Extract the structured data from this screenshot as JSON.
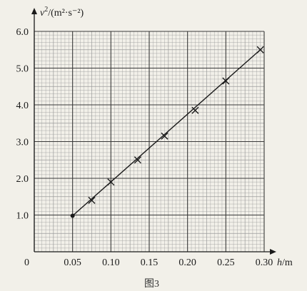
{
  "chart_data": {
    "type": "scatter",
    "caption": "图3",
    "xlabel_var": "h",
    "xlabel_unit": "/m",
    "ylabel_var": "v",
    "ylabel_unit": "/(m²·s⁻²)",
    "origin_label": "0",
    "xlim": [
      0,
      0.3
    ],
    "ylim": [
      0,
      6.0
    ],
    "x_ticks": [
      "0.05",
      "0.10",
      "0.15",
      "0.20",
      "0.25",
      "0.30"
    ],
    "y_ticks": [
      "1.0",
      "2.0",
      "3.0",
      "4.0",
      "5.0",
      "6.0"
    ],
    "grid": true,
    "fit_line": {
      "x": [
        0.05,
        0.295
      ],
      "y": [
        0.98,
        5.5
      ]
    },
    "points": [
      {
        "x": 0.05,
        "y": 0.98
      },
      {
        "x": 0.075,
        "y": 1.4
      },
      {
        "x": 0.1,
        "y": 1.9
      },
      {
        "x": 0.135,
        "y": 2.5
      },
      {
        "x": 0.17,
        "y": 3.15
      },
      {
        "x": 0.21,
        "y": 3.85
      },
      {
        "x": 0.25,
        "y": 4.65
      },
      {
        "x": 0.295,
        "y": 5.5
      }
    ],
    "colors": {
      "grid_minor": "#9a9a9a",
      "grid_major": "#3a3a3a",
      "line": "#1a1a1a",
      "paper": "#f2f0e9"
    }
  }
}
